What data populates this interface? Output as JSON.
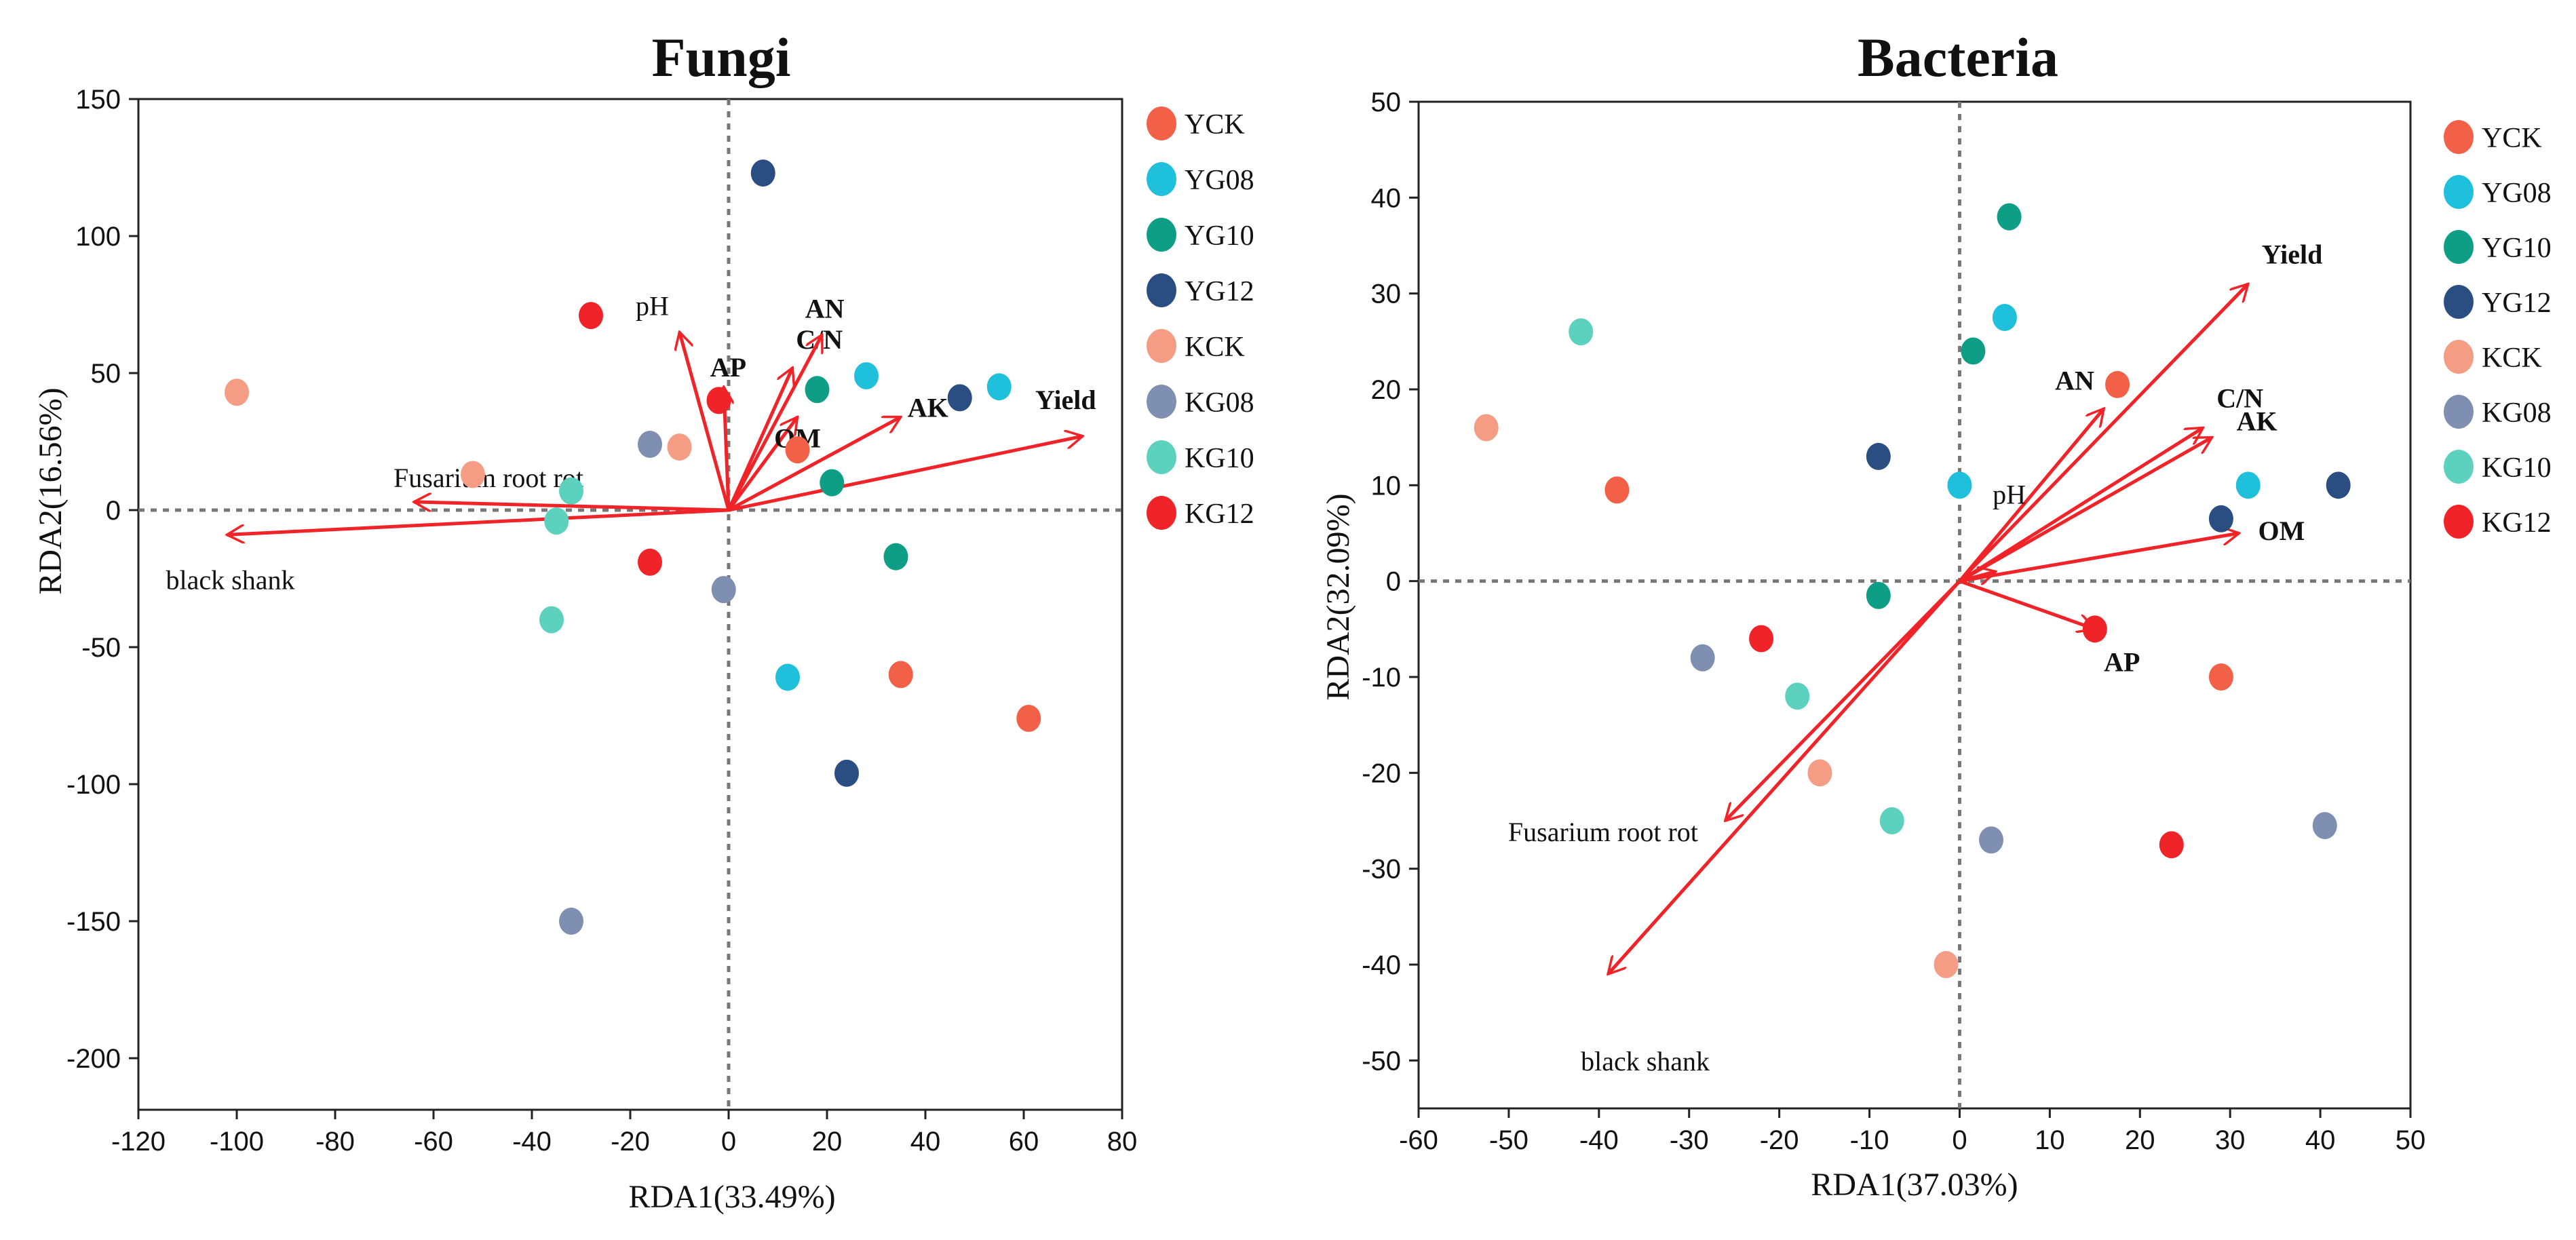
{
  "chart_data": [
    {
      "type": "scatter",
      "title": "Fungi",
      "xlabel": "RDA1(33.49%)",
      "ylabel": "RDA2(16.56%)",
      "xlim": [
        -120,
        80
      ],
      "ylim": [
        -220,
        150
      ],
      "xticks": [
        -120,
        -100,
        -80,
        -60,
        -40,
        -20,
        0,
        20,
        40,
        60,
        80
      ],
      "yticks": [
        150,
        100,
        50,
        0,
        -50,
        -100,
        -150,
        -200
      ],
      "groups": [
        {
          "name": "YCK",
          "color": "#F26048"
        },
        {
          "name": "YG08",
          "color": "#1FC0DB"
        },
        {
          "name": "YG10",
          "color": "#0E9E86"
        },
        {
          "name": "YG12",
          "color": "#2A4E82"
        },
        {
          "name": "KCK",
          "color": "#F59C84"
        },
        {
          "name": "KG08",
          "color": "#7F8FB2"
        },
        {
          "name": "KG10",
          "color": "#5CD1BE"
        },
        {
          "name": "KG12",
          "color": "#EF2328"
        }
      ],
      "points": [
        {
          "group": "YCK",
          "x": 14,
          "y": 22
        },
        {
          "group": "YCK",
          "x": 35,
          "y": -60
        },
        {
          "group": "YCK",
          "x": 61,
          "y": -76
        },
        {
          "group": "YG08",
          "x": 28,
          "y": 49
        },
        {
          "group": "YG08",
          "x": 55,
          "y": 45
        },
        {
          "group": "YG08",
          "x": 12,
          "y": -61
        },
        {
          "group": "YG10",
          "x": 18,
          "y": 44
        },
        {
          "group": "YG10",
          "x": 21,
          "y": 10
        },
        {
          "group": "YG10",
          "x": 34,
          "y": -17
        },
        {
          "group": "YG12",
          "x": 7,
          "y": 123
        },
        {
          "group": "YG12",
          "x": 47,
          "y": 41
        },
        {
          "group": "YG12",
          "x": 24,
          "y": -96
        },
        {
          "group": "KCK",
          "x": -100,
          "y": 43
        },
        {
          "group": "KCK",
          "x": -52,
          "y": 13
        },
        {
          "group": "KCK",
          "x": -10,
          "y": 23
        },
        {
          "group": "KG08",
          "x": -16,
          "y": 24
        },
        {
          "group": "KG08",
          "x": -1,
          "y": -29
        },
        {
          "group": "KG08",
          "x": -32,
          "y": -150
        },
        {
          "group": "KG10",
          "x": -32,
          "y": 7
        },
        {
          "group": "KG10",
          "x": -35,
          "y": -4
        },
        {
          "group": "KG10",
          "x": -36,
          "y": -40
        },
        {
          "group": "KG12",
          "x": -28,
          "y": 71
        },
        {
          "group": "KG12",
          "x": -2,
          "y": 40
        },
        {
          "group": "KG12",
          "x": -16,
          "y": -19
        }
      ],
      "vectors": [
        {
          "label": "pH",
          "x": -10,
          "y": 65
        },
        {
          "label": "AP",
          "x": -1,
          "y": 45
        },
        {
          "label": "C/N",
          "x": 13,
          "y": 52
        },
        {
          "label": "AN",
          "x": 19,
          "y": 64
        },
        {
          "label": "OM",
          "x": 14,
          "y": 34
        },
        {
          "label": "AK",
          "x": 35,
          "y": 34
        },
        {
          "label": "Yield",
          "x": 72,
          "y": 27
        },
        {
          "label": "Fusarium root rot",
          "x": -64,
          "y": 3
        },
        {
          "label": "black shank",
          "x": -102,
          "y": -9
        }
      ]
    },
    {
      "type": "scatter",
      "title": "Bacteria",
      "xlabel": "RDA1(37.03%)",
      "ylabel": "RDA2(32.09%)",
      "xlim": [
        -60,
        50
      ],
      "ylim": [
        -55,
        50
      ],
      "xticks": [
        -60,
        -50,
        -40,
        -30,
        -20,
        -10,
        0,
        10,
        20,
        30,
        40,
        50
      ],
      "yticks": [
        50,
        40,
        30,
        20,
        10,
        0,
        -10,
        -20,
        -30,
        -40,
        -50
      ],
      "groups": [
        {
          "name": "YCK",
          "color": "#F26048"
        },
        {
          "name": "YG08",
          "color": "#1FC0DB"
        },
        {
          "name": "YG10",
          "color": "#0E9E86"
        },
        {
          "name": "YG12",
          "color": "#2A4E82"
        },
        {
          "name": "KCK",
          "color": "#F59C84"
        },
        {
          "name": "KG08",
          "color": "#7F8FB2"
        },
        {
          "name": "KG10",
          "color": "#5CD1BE"
        },
        {
          "name": "KG12",
          "color": "#EF2328"
        }
      ],
      "points": [
        {
          "group": "YCK",
          "x": 17.5,
          "y": 20.5
        },
        {
          "group": "YCK",
          "x": -38,
          "y": 9.5
        },
        {
          "group": "YCK",
          "x": 29,
          "y": -10
        },
        {
          "group": "YG08",
          "x": 5,
          "y": 27.5
        },
        {
          "group": "YG08",
          "x": 0,
          "y": 10
        },
        {
          "group": "YG08",
          "x": 32,
          "y": 10
        },
        {
          "group": "YG10",
          "x": 5.5,
          "y": 38
        },
        {
          "group": "YG10",
          "x": 1.5,
          "y": 24
        },
        {
          "group": "YG10",
          "x": -9,
          "y": -1.5
        },
        {
          "group": "YG12",
          "x": -9,
          "y": 13
        },
        {
          "group": "YG12",
          "x": 29,
          "y": 6.5
        },
        {
          "group": "YG12",
          "x": 42,
          "y": 10
        },
        {
          "group": "KCK",
          "x": -52.5,
          "y": 16
        },
        {
          "group": "KCK",
          "x": -15.5,
          "y": -20
        },
        {
          "group": "KCK",
          "x": -1.5,
          "y": -40
        },
        {
          "group": "KG08",
          "x": -28.5,
          "y": -8
        },
        {
          "group": "KG08",
          "x": 3.5,
          "y": -27
        },
        {
          "group": "KG08",
          "x": 40.5,
          "y": -25.5
        },
        {
          "group": "KG10",
          "x": -42,
          "y": 26
        },
        {
          "group": "KG10",
          "x": -18,
          "y": -12
        },
        {
          "group": "KG10",
          "x": -7.5,
          "y": -25
        },
        {
          "group": "KG12",
          "x": -22,
          "y": -6
        },
        {
          "group": "KG12",
          "x": 15,
          "y": -5
        },
        {
          "group": "KG12",
          "x": 23.5,
          "y": -27.5
        }
      ],
      "vectors": [
        {
          "label": "Yield",
          "x": 32,
          "y": 31
        },
        {
          "label": "AN",
          "x": 16,
          "y": 18
        },
        {
          "label": "C/N",
          "x": 27,
          "y": 16
        },
        {
          "label": "AK",
          "x": 28,
          "y": 15
        },
        {
          "label": "pH",
          "x": 4,
          "y": 1
        },
        {
          "label": "OM",
          "x": 31,
          "y": 5
        },
        {
          "label": "AP",
          "x": 15,
          "y": -5
        },
        {
          "label": "Fusarium root rot",
          "x": -26,
          "y": -25
        },
        {
          "label": "black shank",
          "x": -39,
          "y": -41
        }
      ]
    }
  ]
}
